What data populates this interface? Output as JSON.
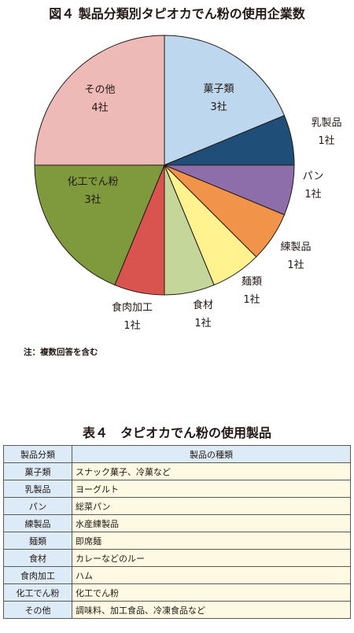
{
  "chart_data": {
    "type": "pie",
    "title": "図４ 製品分類別タピオカでん粉の使用企業数",
    "unit": "社",
    "slices": [
      {
        "label": "菓子類",
        "value": 3,
        "display": "3社",
        "color": "#bdd7ee"
      },
      {
        "label": "乳製品",
        "value": 1,
        "display": "1社",
        "color": "#1f4e79"
      },
      {
        "label": "パン",
        "value": 1,
        "display": "1社",
        "color": "#8e6eaa"
      },
      {
        "label": "練製品",
        "value": 1,
        "display": "1社",
        "color": "#f2934a"
      },
      {
        "label": "麺類",
        "value": 1,
        "display": "1社",
        "color": "#fff28f"
      },
      {
        "label": "食材",
        "value": 1,
        "display": "1社",
        "color": "#c5d69b"
      },
      {
        "label": "食肉加工",
        "value": 1,
        "display": "1社",
        "color": "#d9534f"
      },
      {
        "label": "化工でん粉",
        "value": 3,
        "display": "3社",
        "color": "#7f9a3d"
      },
      {
        "label": "その他",
        "value": 4,
        "display": "4社",
        "color": "#eebab8"
      }
    ]
  },
  "note": "注：複数回答を含む",
  "table": {
    "title": "表４　タピオカでん粉の使用製品",
    "headers": [
      "製品分類",
      "製品の種類"
    ],
    "rows": [
      [
        "菓子類",
        "スナック菓子、冷菓など"
      ],
      [
        "乳製品",
        "ヨーグルト"
      ],
      [
        "パン",
        "総菜パン"
      ],
      [
        "練製品",
        "水産練製品"
      ],
      [
        "麺類",
        "即席麺"
      ],
      [
        "食材",
        "カレーなどのルー"
      ],
      [
        "食肉加工",
        "ハム"
      ],
      [
        "化工でん粉",
        "化工でん粉"
      ],
      [
        "その他",
        "調味料、加工食品、冷凍食品など"
      ]
    ]
  }
}
